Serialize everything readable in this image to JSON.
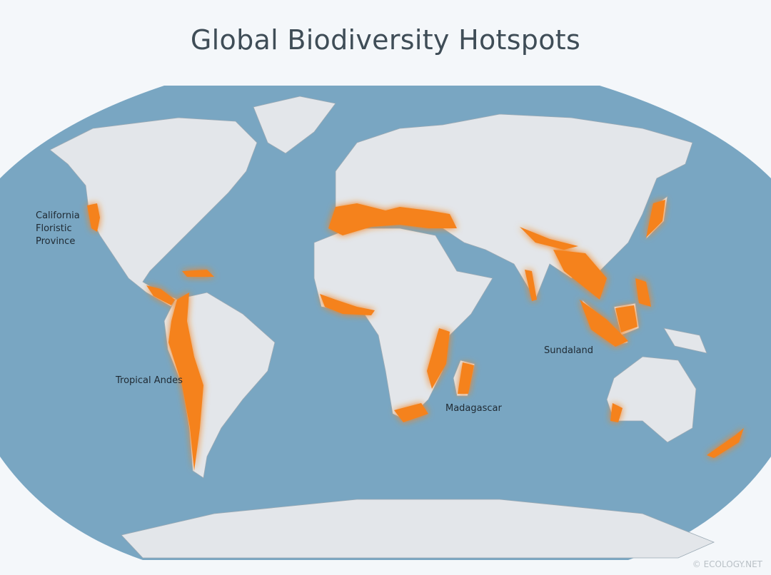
{
  "title": "Global Biodiversity Hotspots",
  "labels": {
    "california": [
      "California",
      "Floristic",
      "Province"
    ],
    "andes": "Tropical Andes",
    "madagascar": "Madagascar",
    "sundaland": "Sundaland"
  },
  "watermark": "© ECOLOGY.NET",
  "colors": {
    "ocean": "#79a6c2",
    "land": "#e3e6ea",
    "hotspot": "#f5821f",
    "background": "#f4f7fa"
  }
}
